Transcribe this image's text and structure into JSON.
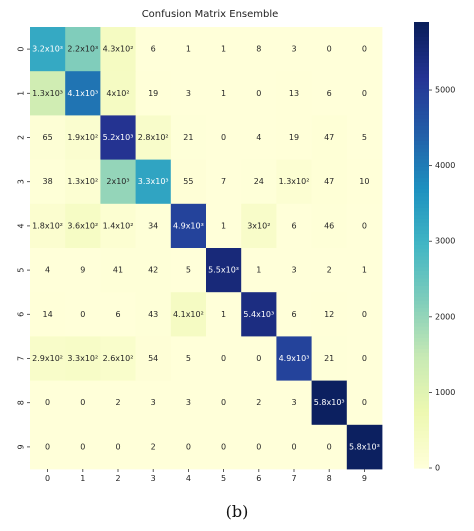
{
  "caption": "(b)",
  "chart_data": {
    "type": "heatmap",
    "title": "Confusion Matrix Ensemble",
    "x_tick_labels": [
      "0",
      "1",
      "2",
      "3",
      "4",
      "5",
      "6",
      "7",
      "8",
      "9"
    ],
    "y_tick_labels": [
      "0",
      "1",
      "2",
      "3",
      "4",
      "5",
      "6",
      "7",
      "8",
      "9"
    ],
    "matrix": [
      [
        3200,
        2200,
        430,
        6,
        1,
        1,
        8,
        3,
        0,
        0
      ],
      [
        1300,
        4100,
        400,
        19,
        3,
        1,
        0,
        13,
        6,
        0
      ],
      [
        65,
        190,
        5200,
        280,
        21,
        0,
        4,
        19,
        47,
        5
      ],
      [
        38,
        130,
        2000,
        3300,
        55,
        7,
        24,
        130,
        47,
        10
      ],
      [
        180,
        360,
        140,
        34,
        4900,
        1,
        300,
        6,
        46,
        0
      ],
      [
        4,
        9,
        41,
        42,
        5,
        5500,
        1,
        3,
        2,
        1
      ],
      [
        14,
        0,
        6,
        43,
        410,
        1,
        5400,
        6,
        12,
        0
      ],
      [
        290,
        330,
        260,
        54,
        5,
        0,
        0,
        4900,
        21,
        0
      ],
      [
        0,
        0,
        2,
        3,
        3,
        0,
        2,
        3,
        5800,
        0
      ],
      [
        0,
        0,
        0,
        2,
        0,
        0,
        0,
        0,
        0,
        5800
      ]
    ],
    "cell_labels": [
      [
        "3.2x10³",
        "2.2x10³",
        "4.3x10²",
        "6",
        "1",
        "1",
        "8",
        "3",
        "0",
        "0"
      ],
      [
        "1.3x10³",
        "4.1x10³",
        "4x10²",
        "19",
        "3",
        "1",
        "0",
        "13",
        "6",
        "0"
      ],
      [
        "65",
        "1.9x10²",
        "5.2x10³",
        "2.8x10²",
        "21",
        "0",
        "4",
        "19",
        "47",
        "5"
      ],
      [
        "38",
        "1.3x10²",
        "2x10³",
        "3.3x10³",
        "55",
        "7",
        "24",
        "1.3x10²",
        "47",
        "10"
      ],
      [
        "1.8x10²",
        "3.6x10²",
        "1.4x10²",
        "34",
        "4.9x10³",
        "1",
        "3x10²",
        "6",
        "46",
        "0"
      ],
      [
        "4",
        "9",
        "41",
        "42",
        "5",
        "5.5x10³",
        "1",
        "3",
        "2",
        "1"
      ],
      [
        "14",
        "0",
        "6",
        "43",
        "4.1x10²",
        "1",
        "5.4x10³",
        "6",
        "12",
        "0"
      ],
      [
        "2.9x10²",
        "3.3x10²",
        "2.6x10²",
        "54",
        "5",
        "0",
        "0",
        "4.9x10³",
        "21",
        "0"
      ],
      [
        "0",
        "0",
        "2",
        "3",
        "3",
        "0",
        "2",
        "3",
        "5.8x10³",
        "0"
      ],
      [
        "0",
        "0",
        "0",
        "2",
        "0",
        "0",
        "0",
        "0",
        "0",
        "5.8x10³"
      ]
    ],
    "colorbar": {
      "colormap": "YlGnBu",
      "range": [
        0,
        5900
      ],
      "ticks": [
        0,
        1000,
        2000,
        3000,
        4000,
        5000
      ],
      "tick_labels": [
        "0",
        "1000",
        "2000",
        "3000",
        "4000",
        "5000"
      ]
    }
  }
}
